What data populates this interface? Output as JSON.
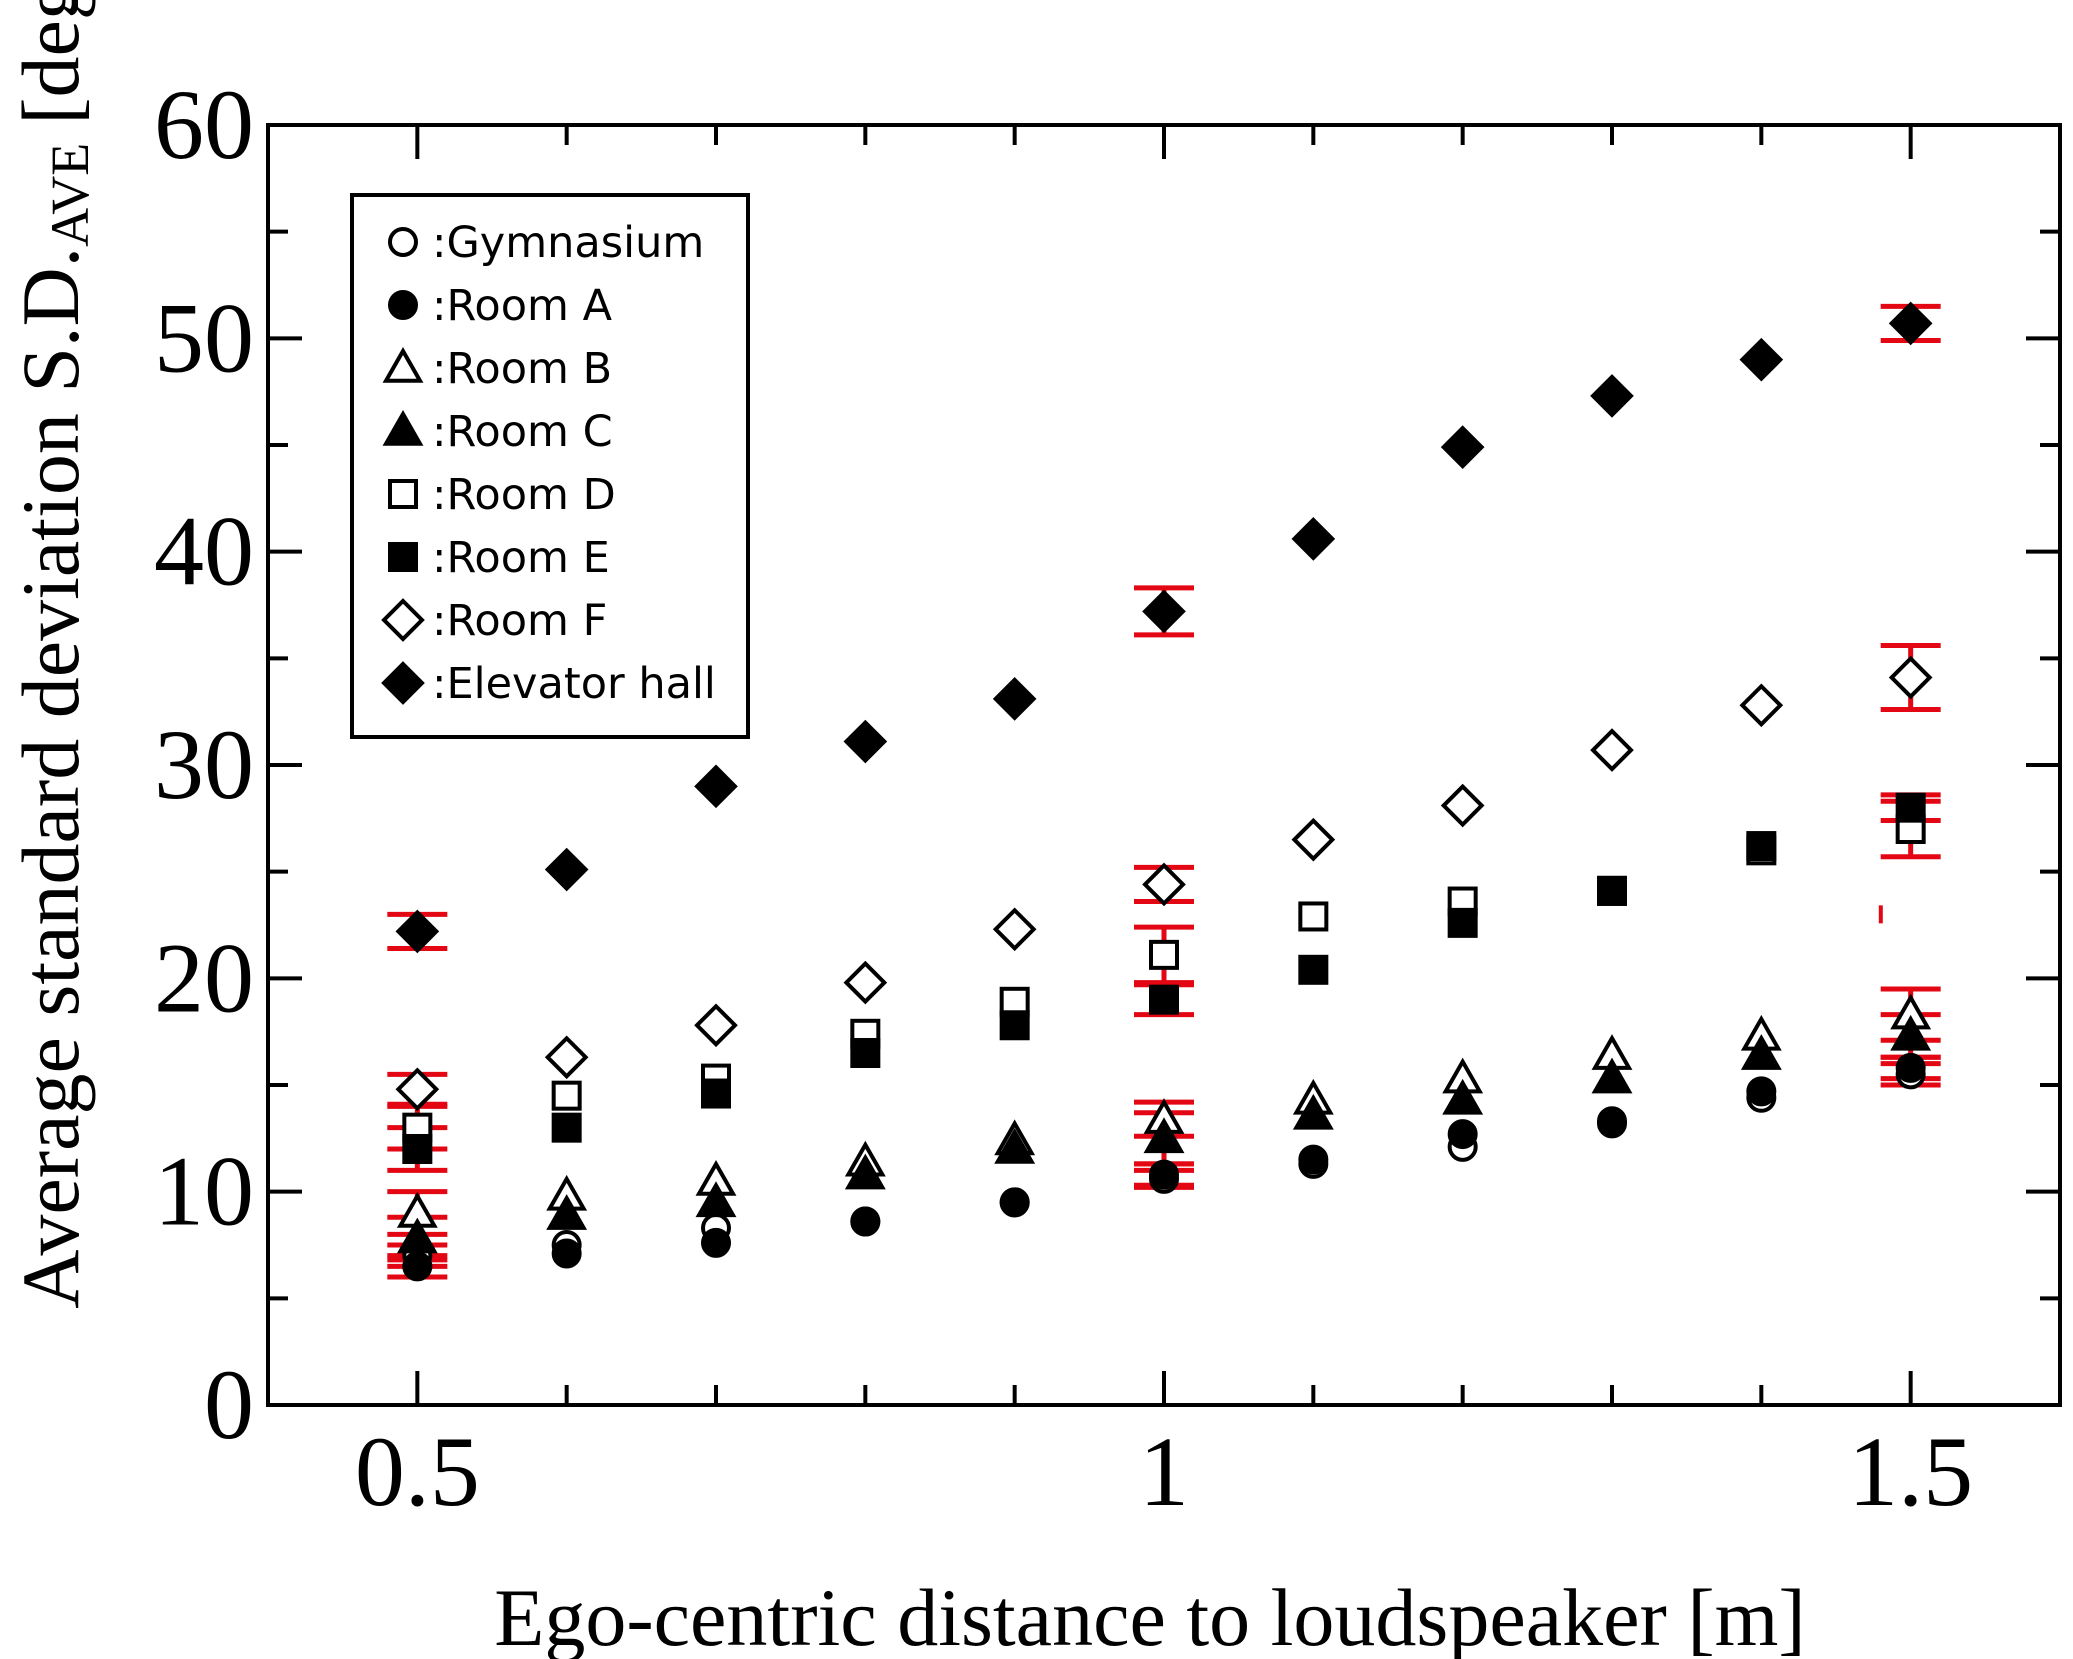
{
  "chart_data": {
    "type": "scatter",
    "title": "",
    "xlabel": "Ego-centric distance to loudspeaker [m]",
    "ylabel": {
      "main": "Average standard deviation S.D.",
      "subscript": "AVE",
      "unit": "[deg.]"
    },
    "xlim": [
      0.4,
      1.6
    ],
    "ylim": [
      0,
      60
    ],
    "xticks": [
      0.5,
      1,
      1.5
    ],
    "xtick_labels": [
      "0.5",
      "1",
      "1.5"
    ],
    "yticks": [
      0,
      10,
      20,
      30,
      40,
      50,
      60
    ],
    "ytick_labels": [
      "0",
      "10",
      "20",
      "30",
      "40",
      "50",
      "60"
    ],
    "grid": false,
    "legend_position": "top-left",
    "error_bar_color": "#e30613",
    "x": [
      0.5,
      0.6,
      0.7,
      0.8,
      0.9,
      1.0,
      1.1,
      1.2,
      1.3,
      1.4,
      1.5
    ],
    "series": [
      {
        "name": "Gymnasium",
        "marker": "circle-open",
        "values": [
          7.0,
          7.5,
          8.3,
          8.6,
          9.5,
          10.6,
          11.3,
          12.1,
          13.3,
          14.4,
          15.5
        ],
        "error": [
          0.5,
          null,
          null,
          null,
          null,
          0.4,
          null,
          null,
          null,
          null,
          0.5
        ]
      },
      {
        "name": "Room A",
        "marker": "circle-filled",
        "values": [
          6.5,
          7.1,
          7.6,
          8.6,
          9.5,
          10.8,
          11.5,
          12.7,
          13.2,
          14.7,
          15.8
        ],
        "error": [
          0.5,
          null,
          null,
          null,
          null,
          0.5,
          null,
          null,
          null,
          null,
          0.5
        ]
      },
      {
        "name": "Room B",
        "marker": "triangle-open",
        "values": [
          9.0,
          9.8,
          10.5,
          11.4,
          12.4,
          13.4,
          14.3,
          15.3,
          16.4,
          17.3,
          18.3
        ],
        "error": [
          1.0,
          null,
          null,
          null,
          null,
          0.8,
          null,
          null,
          null,
          null,
          1.2
        ]
      },
      {
        "name": "Room C",
        "marker": "triangle-filled",
        "values": [
          7.8,
          8.9,
          9.5,
          10.8,
          12.0,
          12.5,
          13.6,
          14.3,
          15.3,
          16.4,
          17.3
        ],
        "error": [
          1.0,
          null,
          null,
          null,
          null,
          1.2,
          null,
          null,
          null,
          null,
          1.0
        ]
      },
      {
        "name": "Room D",
        "marker": "square-open",
        "values": [
          13.0,
          14.5,
          15.3,
          17.4,
          18.9,
          21.1,
          22.9,
          23.6,
          24.1,
          26.0,
          27.0
        ],
        "error": [
          1.0,
          null,
          null,
          null,
          null,
          1.3,
          null,
          null,
          null,
          null,
          1.3
        ]
      },
      {
        "name": "Room E",
        "marker": "square-filled",
        "values": [
          12.0,
          13.0,
          14.6,
          16.5,
          17.8,
          19.0,
          20.4,
          22.6,
          24.1,
          26.2,
          28.0
        ],
        "error": [
          1.0,
          null,
          null,
          null,
          null,
          0.7,
          null,
          null,
          null,
          null,
          0.6
        ]
      },
      {
        "name": "Room F",
        "marker": "diamond-open",
        "values": [
          14.8,
          16.3,
          17.8,
          19.8,
          22.3,
          24.4,
          26.5,
          28.1,
          30.7,
          32.8,
          34.1
        ],
        "error": [
          0.7,
          null,
          null,
          null,
          null,
          0.8,
          null,
          null,
          null,
          null,
          1.5
        ]
      },
      {
        "name": "Elevator hall",
        "marker": "diamond-filled",
        "values": [
          22.2,
          25.1,
          29.0,
          31.1,
          33.1,
          37.2,
          40.6,
          44.9,
          47.3,
          49.0,
          50.7
        ],
        "error": [
          0.8,
          null,
          null,
          null,
          null,
          1.1,
          null,
          null,
          null,
          null,
          0.8
        ]
      }
    ],
    "annotations": [
      {
        "text": "",
        "type": "stray red tick",
        "x": 1.48,
        "y": 23.0
      }
    ]
  }
}
